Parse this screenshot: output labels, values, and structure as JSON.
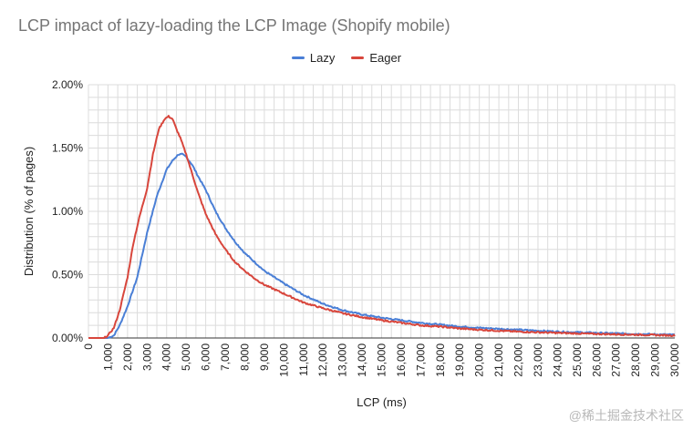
{
  "chart_data": {
    "type": "line",
    "title": "LCP impact of lazy-loading the LCP Image (Shopify mobile)",
    "xlabel": "LCP (ms)",
    "ylabel": "Distribution (% of pages)",
    "xlim": [
      0,
      30000
    ],
    "ylim": [
      0,
      2.0
    ],
    "y_ticks": [
      0,
      0.5,
      1.0,
      1.5,
      2.0
    ],
    "y_tick_labels": [
      "0.00%",
      "0.50%",
      "1.00%",
      "1.50%",
      "2.00%"
    ],
    "x_ticks": [
      0,
      1000,
      2000,
      3000,
      4000,
      5000,
      6000,
      7000,
      8000,
      9000,
      10000,
      11000,
      12000,
      13000,
      14000,
      15000,
      16000,
      17000,
      18000,
      19000,
      20000,
      21000,
      22000,
      23000,
      24000,
      25000,
      26000,
      27000,
      28000,
      29000,
      30000
    ],
    "x_tick_labels": [
      "0",
      "1,000",
      "2,000",
      "3,000",
      "4,000",
      "5,000",
      "6,000",
      "7,000",
      "8,000",
      "9,000",
      "10,000",
      "11,000",
      "12,000",
      "13,000",
      "14,000",
      "15,000",
      "16,000",
      "17,000",
      "18,000",
      "19,000",
      "20,000",
      "21,000",
      "22,000",
      "23,000",
      "24,000",
      "25,000",
      "26,000",
      "27,000",
      "28,000",
      "29,000",
      "30,000"
    ],
    "grid": true,
    "legend_position": "top-center",
    "series": [
      {
        "name": "Lazy",
        "color": "#4a7fd6",
        "x": [
          0,
          1000,
          1300,
          1600,
          2000,
          2500,
          3000,
          3500,
          4000,
          4300,
          4600,
          4800,
          5000,
          5300,
          5600,
          6000,
          6500,
          7000,
          7500,
          8000,
          8500,
          9000,
          10000,
          11000,
          12000,
          13000,
          14000,
          15000,
          16000,
          17000,
          18000,
          19000,
          20000,
          22000,
          24000,
          26000,
          28000,
          30000
        ],
        "y": [
          0,
          0,
          0.02,
          0.1,
          0.25,
          0.48,
          0.83,
          1.12,
          1.33,
          1.4,
          1.45,
          1.45,
          1.43,
          1.37,
          1.28,
          1.17,
          1.0,
          0.87,
          0.76,
          0.67,
          0.6,
          0.53,
          0.43,
          0.34,
          0.27,
          0.22,
          0.185,
          0.16,
          0.14,
          0.12,
          0.105,
          0.09,
          0.08,
          0.065,
          0.05,
          0.04,
          0.032,
          0.025
        ]
      },
      {
        "name": "Eager",
        "color": "#d8463c",
        "x": [
          0,
          800,
          1000,
          1300,
          1600,
          2000,
          2300,
          2600,
          3000,
          3300,
          3600,
          3900,
          4100,
          4300,
          4500,
          4700,
          5000,
          5300,
          5600,
          6000,
          6500,
          7000,
          7500,
          8000,
          8500,
          9000,
          10000,
          11000,
          12000,
          13000,
          14000,
          15000,
          16000,
          17000,
          18000,
          19000,
          20000,
          22000,
          24000,
          26000,
          28000,
          30000
        ],
        "y": [
          0,
          0,
          0.02,
          0.08,
          0.22,
          0.48,
          0.75,
          0.95,
          1.18,
          1.45,
          1.65,
          1.73,
          1.75,
          1.73,
          1.65,
          1.58,
          1.45,
          1.3,
          1.15,
          0.98,
          0.82,
          0.7,
          0.6,
          0.53,
          0.47,
          0.42,
          0.35,
          0.28,
          0.235,
          0.195,
          0.165,
          0.14,
          0.12,
          0.1,
          0.09,
          0.075,
          0.065,
          0.05,
          0.04,
          0.032,
          0.026,
          0.02
        ]
      }
    ]
  },
  "watermark": "@稀土掘金技术社区"
}
